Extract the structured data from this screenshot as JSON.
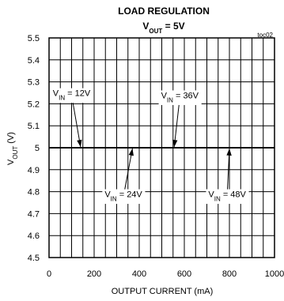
{
  "chart_data": {
    "type": "line",
    "title": "LOAD REGULATION",
    "subtitle_main": "V",
    "subtitle_sub": "OUT",
    "subtitle_rest": " = 5V",
    "corner_label": "toc02",
    "xlabel": "OUTPUT CURRENT (mA)",
    "ylabel_main": "V",
    "ylabel_sub": "OUT",
    "ylabel_rest": " (V)",
    "xlim": [
      0,
      1000
    ],
    "ylim": [
      4.5,
      5.5
    ],
    "x_ticks": [
      0,
      200,
      400,
      600,
      800,
      1000
    ],
    "y_ticks": [
      "4.5",
      "4.6",
      "4.7",
      "4.8",
      "4.9",
      "5",
      "5.1",
      "5.2",
      "5.3",
      "5.4",
      "5.5"
    ],
    "grid": true,
    "series": [
      {
        "name": "V_IN = 12V",
        "x": [
          0,
          1000
        ],
        "y": [
          5.0,
          5.0
        ]
      },
      {
        "name": "V_IN = 24V",
        "x": [
          0,
          1000
        ],
        "y": [
          5.0,
          5.0
        ]
      },
      {
        "name": "V_IN = 36V",
        "x": [
          0,
          1000
        ],
        "y": [
          5.0,
          5.0
        ]
      },
      {
        "name": "V_IN = 48V",
        "x": [
          0,
          1000
        ],
        "y": [
          5.0,
          5.0
        ]
      }
    ],
    "annotations": [
      {
        "main": "V",
        "sub": "IN",
        "rest": " = 12V",
        "label_x": 100,
        "label_y": 5.235,
        "arrow_x": 140,
        "arrow_y": 5.003
      },
      {
        "main": "V",
        "sub": "IN",
        "rest": " = 36V",
        "label_x": 580,
        "label_y": 5.225,
        "arrow_x": 555,
        "arrow_y": 5.003
      },
      {
        "main": "V",
        "sub": "IN",
        "rest": " = 24V",
        "label_x": 330,
        "label_y": 4.775,
        "arrow_x": 370,
        "arrow_y": 4.997
      },
      {
        "main": "V",
        "sub": "IN",
        "rest": " = 48V",
        "label_x": 790,
        "label_y": 4.775,
        "arrow_x": 800,
        "arrow_y": 4.997
      }
    ]
  }
}
